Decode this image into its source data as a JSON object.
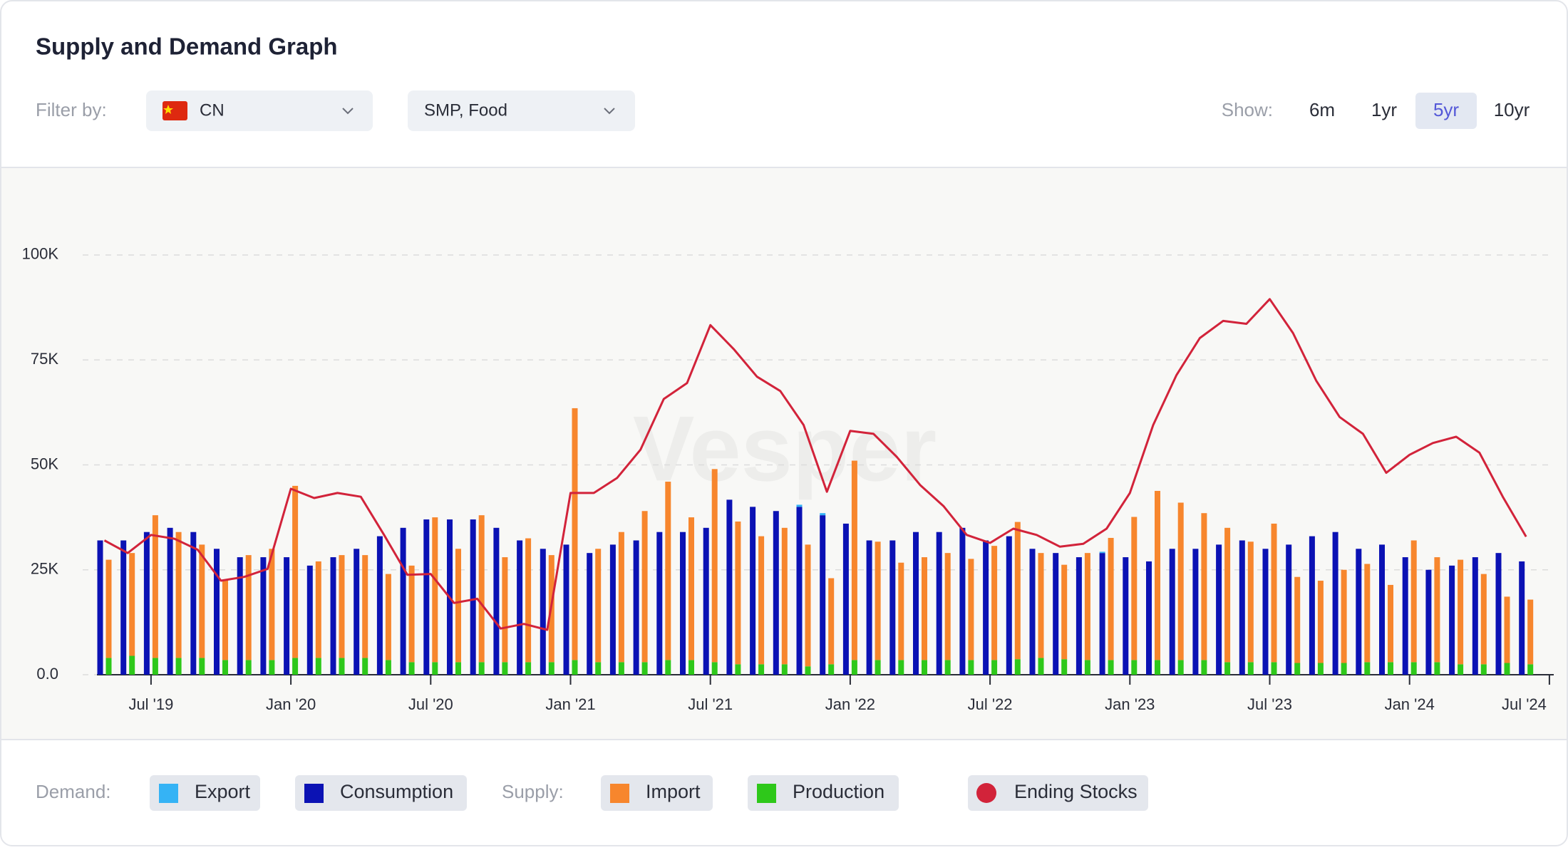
{
  "header": {
    "title": "Supply and Demand Graph",
    "filter_label": "Filter by:",
    "country": "CN",
    "product": "SMP, Food",
    "show_label": "Show:",
    "ranges": [
      "6m",
      "1yr",
      "5yr",
      "10yr"
    ],
    "selected_range": "5yr"
  },
  "legend_groups": {
    "demand": "Demand:",
    "supply": "Supply:"
  },
  "watermark": "Vesper",
  "chart_data": {
    "type": "bar",
    "categories": [
      null,
      null,
      "Jul '19",
      null,
      null,
      null,
      null,
      null,
      "Jan '20",
      null,
      null,
      null,
      null,
      null,
      "Jul '20",
      null,
      null,
      null,
      null,
      null,
      "Jan '21",
      null,
      null,
      null,
      null,
      null,
      "Jul '21",
      null,
      null,
      null,
      null,
      null,
      "Jan '22",
      null,
      null,
      null,
      null,
      null,
      "Jul '22",
      null,
      null,
      null,
      null,
      null,
      "Jan '23",
      null,
      null,
      null,
      null,
      null,
      "Jul '23",
      null,
      null,
      null,
      null,
      null,
      "Jan '24",
      null,
      null,
      null,
      null,
      null,
      "Jul '24"
    ],
    "ylim": [
      0,
      110000
    ],
    "yticks": [
      {
        "value": 0,
        "label": "0.0"
      },
      {
        "value": 25000,
        "label": "25K"
      },
      {
        "value": 50000,
        "label": "50K"
      },
      {
        "value": 75000,
        "label": "75K"
      },
      {
        "value": 100000,
        "label": "100K"
      }
    ],
    "grid": true,
    "series": [
      {
        "name": "Export",
        "color": "#35b3f5",
        "values": [
          0,
          0,
          0,
          0,
          0,
          0,
          0,
          0,
          0,
          0,
          0,
          0,
          0,
          0,
          0,
          0,
          0,
          0,
          0,
          0,
          0,
          0,
          0,
          0,
          0,
          0,
          0,
          0,
          0,
          0,
          500,
          500,
          0,
          0,
          0,
          0,
          0,
          0,
          0,
          0,
          0,
          0,
          0,
          300,
          0,
          0,
          0,
          0,
          0,
          0,
          0,
          0,
          0,
          0,
          0,
          0,
          0,
          0,
          0,
          0,
          0,
          0,
          null
        ]
      },
      {
        "name": "Consumption",
        "color": "#0b12b4",
        "values": [
          32000,
          32000,
          34000,
          35000,
          34000,
          30000,
          28000,
          28000,
          28000,
          26000,
          28000,
          30000,
          33000,
          35000,
          37000,
          37000,
          37000,
          35000,
          32000,
          30000,
          31000,
          29000,
          31000,
          32000,
          34000,
          34000,
          35000,
          41700,
          40000,
          39000,
          40000,
          38000,
          36000,
          32000,
          32000,
          34000,
          34000,
          35000,
          32000,
          33000,
          30000,
          29000,
          28000,
          29000,
          28000,
          27000,
          30000,
          30000,
          31000,
          32000,
          30000,
          31000,
          33000,
          34000,
          30000,
          31000,
          28000,
          25000,
          26000,
          28000,
          29000,
          27000,
          null
        ]
      },
      {
        "name": "Import",
        "color": "#f7862d",
        "values": [
          23400,
          24500,
          34000,
          30000,
          27000,
          19100,
          25000,
          26500,
          41000,
          23000,
          24500,
          24500,
          20500,
          23000,
          34500,
          27000,
          35000,
          25000,
          29500,
          25500,
          60000,
          27000,
          31000,
          36000,
          42500,
          34000,
          46000,
          34000,
          30500,
          32500,
          29000,
          20500,
          47500,
          28200,
          23200,
          24500,
          25500,
          24100,
          27200,
          32700,
          25000,
          22500,
          25500,
          29100,
          34100,
          40300,
          37500,
          35000,
          32000,
          28700,
          33000,
          20500,
          19600,
          22200,
          23400,
          18400,
          29000,
          25000,
          24900,
          21500,
          15800,
          15400,
          null
        ]
      },
      {
        "name": "Production",
        "color": "#2ec81a",
        "values": [
          4000,
          4500,
          4000,
          4000,
          4000,
          3500,
          3500,
          3500,
          4000,
          4000,
          4000,
          4000,
          3500,
          3000,
          3000,
          3000,
          3000,
          3000,
          3000,
          3000,
          3500,
          3000,
          3000,
          3000,
          3500,
          3500,
          3000,
          2500,
          2500,
          2500,
          2000,
          2500,
          3500,
          3500,
          3500,
          3500,
          3500,
          3500,
          3500,
          3700,
          4000,
          3700,
          3500,
          3500,
          3500,
          3500,
          3500,
          3500,
          3000,
          3000,
          3000,
          2800,
          2800,
          2800,
          3000,
          3000,
          3000,
          3000,
          2500,
          2500,
          2800,
          2500,
          null
        ]
      },
      {
        "name": "Ending Stocks",
        "type": "line",
        "color": "#d2233a",
        "values": [
          32000,
          29000,
          33300,
          32400,
          29800,
          22400,
          23300,
          25200,
          44300,
          42100,
          43300,
          42400,
          33300,
          23800,
          24000,
          17100,
          18100,
          11000,
          12100,
          10700,
          43300,
          43300,
          46900,
          53600,
          65700,
          69500,
          83300,
          77600,
          71000,
          67600,
          59500,
          43600,
          58100,
          57400,
          51900,
          45200,
          40200,
          33300,
          31400,
          34800,
          33300,
          30500,
          31200,
          34800,
          43300,
          59500,
          71400,
          80200,
          84300,
          83600,
          89500,
          81400,
          70000,
          61400,
          57400,
          48100,
          52400,
          55200,
          56700,
          52900,
          42400,
          32900,
          null
        ]
      }
    ]
  }
}
